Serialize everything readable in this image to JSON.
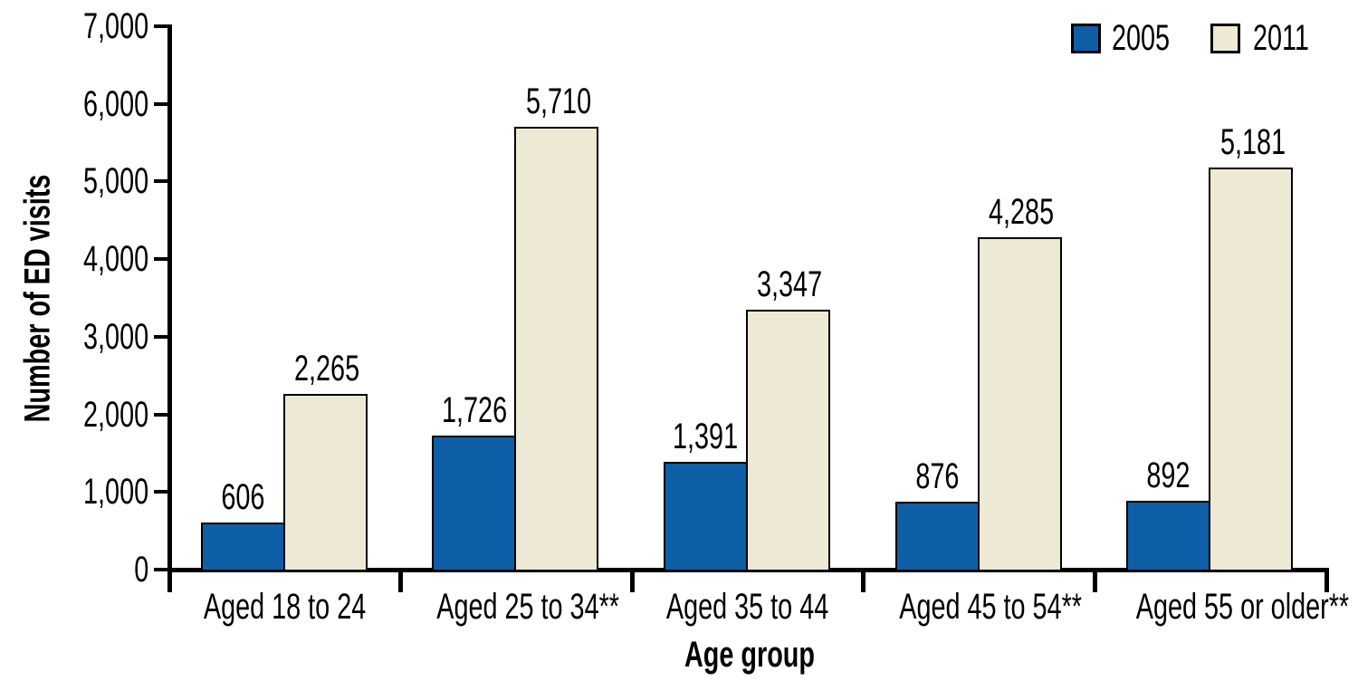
{
  "chart_data": {
    "type": "bar",
    "title": "",
    "xlabel": "Age group",
    "ylabel": "Number of ED visits",
    "categories": [
      "Aged 18 to 24",
      "Aged 25 to 34**",
      "Aged 35 to 44",
      "Aged 45 to 54**",
      "Aged 55 or older**"
    ],
    "series": [
      {
        "name": "2005",
        "color": "#0E5FA6",
        "values": [
          606,
          1726,
          1391,
          876,
          892
        ],
        "labels": [
          "606",
          "1,726",
          "1,391",
          "876",
          "892"
        ]
      },
      {
        "name": "2011",
        "color": "#EEE9D4",
        "values": [
          2265,
          5710,
          3347,
          4285,
          5181
        ],
        "labels": [
          "2,265",
          "5,710",
          "3,347",
          "4,285",
          "5,181"
        ]
      }
    ],
    "ylim": [
      0,
      7000
    ],
    "yticks": [
      0,
      1000,
      2000,
      3000,
      4000,
      5000,
      6000,
      7000
    ],
    "ytick_labels": [
      "0",
      "1,000",
      "2,000",
      "3,000",
      "4,000",
      "5,000",
      "6,000",
      "7,000"
    ],
    "legend_position": "top-right",
    "grid": false
  },
  "colors": {
    "ink": "#000000",
    "background": "#FFFFFF",
    "series_2005": "#0E5FA6",
    "series_2011": "#EEE9D4"
  }
}
